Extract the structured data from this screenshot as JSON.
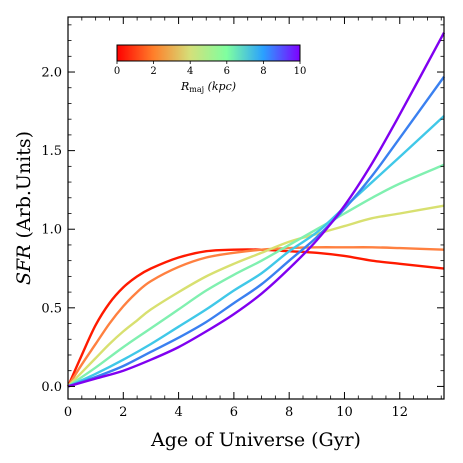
{
  "chart_data": {
    "type": "line",
    "xlabel": "Age of Universe (Gyr)",
    "ylabel_italic": "SFR",
    "ylabel_rest": " (Arb.Units)",
    "xlim": [
      0,
      13.6
    ],
    "ylim": [
      -0.08,
      2.35
    ],
    "x_ticks": [
      0,
      2,
      4,
      6,
      8,
      10,
      12
    ],
    "y_ticks": [
      0.0,
      0.5,
      1.0,
      1.5,
      2.0
    ],
    "y_tick_labels": [
      "0.0",
      "0.5",
      "1.0",
      "1.5",
      "2.0"
    ],
    "grid": false,
    "colorbar": {
      "label_main": "R",
      "label_sub": "maj",
      "label_unit": " (kpc)",
      "range": [
        0,
        10
      ],
      "ticks": [
        0,
        2,
        4,
        6,
        8,
        10
      ],
      "colors": [
        "#ff0000",
        "#ff7f2a",
        "#d4e07a",
        "#7fffa0",
        "#2aa0ff",
        "#7f00ff"
      ],
      "placement": "top-left"
    },
    "series": [
      {
        "color": "#ff1a00",
        "x": [
          0,
          0.5,
          1,
          1.5,
          2,
          2.5,
          3,
          4,
          5,
          6,
          7,
          8,
          9,
          10,
          11,
          12,
          13.6
        ],
        "y": [
          0,
          0.2,
          0.39,
          0.53,
          0.63,
          0.7,
          0.75,
          0.82,
          0.86,
          0.87,
          0.87,
          0.86,
          0.85,
          0.83,
          0.8,
          0.78,
          0.75
        ]
      },
      {
        "color": "#ff8040",
        "x": [
          0,
          0.5,
          1,
          1.5,
          2,
          2.5,
          3,
          4,
          5,
          6,
          7,
          8,
          9,
          10,
          11,
          12,
          13.6
        ],
        "y": [
          0,
          0.14,
          0.27,
          0.4,
          0.51,
          0.6,
          0.67,
          0.76,
          0.82,
          0.85,
          0.87,
          0.88,
          0.885,
          0.885,
          0.885,
          0.88,
          0.87
        ]
      },
      {
        "color": "#d8e070",
        "x": [
          0,
          0.5,
          1,
          1.5,
          2,
          2.5,
          3,
          4,
          5,
          6,
          7,
          8,
          9,
          10,
          11,
          12,
          13.6
        ],
        "y": [
          0,
          0.09,
          0.18,
          0.27,
          0.35,
          0.42,
          0.49,
          0.6,
          0.7,
          0.78,
          0.85,
          0.92,
          0.97,
          1.02,
          1.07,
          1.1,
          1.15
        ]
      },
      {
        "color": "#80f0b0",
        "x": [
          0,
          1,
          2,
          3,
          4,
          5,
          6,
          7,
          8,
          9,
          10,
          11,
          12,
          13.6
        ],
        "y": [
          0,
          0.12,
          0.25,
          0.37,
          0.49,
          0.61,
          0.71,
          0.8,
          0.9,
          1.0,
          1.1,
          1.2,
          1.29,
          1.41
        ]
      },
      {
        "color": "#40c8e8",
        "x": [
          0,
          1,
          2,
          3,
          4,
          5,
          6,
          7,
          8,
          9,
          10,
          11,
          12,
          13.6
        ],
        "y": [
          0,
          0.08,
          0.17,
          0.27,
          0.38,
          0.49,
          0.61,
          0.72,
          0.86,
          0.98,
          1.14,
          1.3,
          1.46,
          1.72
        ]
      },
      {
        "color": "#3a80f0",
        "x": [
          0,
          1,
          2,
          3,
          4,
          5,
          6,
          7,
          8,
          9,
          10,
          11,
          12,
          13.6
        ],
        "y": [
          0,
          0.06,
          0.13,
          0.22,
          0.31,
          0.41,
          0.53,
          0.65,
          0.8,
          0.95,
          1.13,
          1.34,
          1.58,
          1.97
        ]
      },
      {
        "color": "#8000f0",
        "x": [
          0,
          1,
          2,
          3,
          4,
          5,
          6,
          7,
          8,
          9,
          10,
          11,
          12,
          13.6
        ],
        "y": [
          0,
          0.05,
          0.1,
          0.17,
          0.25,
          0.35,
          0.46,
          0.59,
          0.75,
          0.93,
          1.15,
          1.42,
          1.73,
          2.25
        ]
      }
    ]
  }
}
